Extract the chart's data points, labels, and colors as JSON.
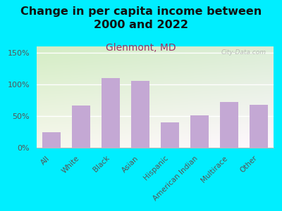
{
  "title": "Change in per capita income between\n2000 and 2022",
  "subtitle": "Glenmont, MD",
  "watermark": "City-Data.com",
  "categories": [
    "All",
    "White",
    "Black",
    "Asian",
    "Hispanic",
    "American Indian",
    "Multirace",
    "Other"
  ],
  "values": [
    25,
    67,
    110,
    106,
    40,
    51,
    72,
    68
  ],
  "bar_color": "#c4a8d4",
  "title_color": "#111111",
  "subtitle_color": "#993366",
  "background_outer": "#00eeff",
  "ylim": [
    0,
    160
  ],
  "yticks": [
    0,
    50,
    100,
    150
  ],
  "ytick_labels": [
    "0%",
    "50%",
    "100%",
    "150%"
  ],
  "xlabel_rotation": 45,
  "title_fontsize": 11.5,
  "subtitle_fontsize": 10,
  "tick_label_color": "#555555",
  "watermark_color": "#aaaaaa",
  "grid_color": "#cccccc"
}
